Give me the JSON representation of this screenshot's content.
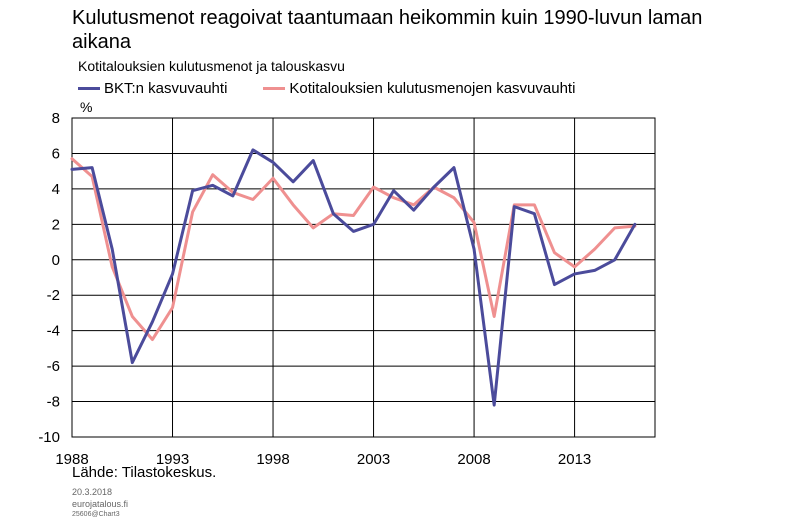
{
  "chart_data": {
    "type": "line",
    "title": "Kulutusmenot reagoivat taantumaan heikommin kuin 1990-luvun laman aikana",
    "subtitle": "Kotitalouksien kulutusmenot ja talouskasvu",
    "ylabel": "%",
    "ylim": [
      -10,
      8
    ],
    "yticks": [
      8,
      6,
      4,
      2,
      0,
      -2,
      -4,
      -6,
      -8,
      -10
    ],
    "xlim": [
      1988,
      2017
    ],
    "xticks": [
      1988,
      1993,
      1998,
      2003,
      2008,
      2013
    ],
    "grid": true,
    "legend_position": "top",
    "x": [
      1988,
      1989,
      1990,
      1991,
      1992,
      1993,
      1994,
      1995,
      1996,
      1997,
      1998,
      1999,
      2000,
      2001,
      2002,
      2003,
      2004,
      2005,
      2006,
      2007,
      2008,
      2009,
      2010,
      2011,
      2012,
      2013,
      2014,
      2015,
      2016
    ],
    "series": [
      {
        "name": "BKT:n kasvuvauhti",
        "color": "#4b4b9b",
        "values": [
          5.1,
          5.2,
          0.6,
          -5.8,
          -3.5,
          -0.8,
          3.9,
          4.2,
          3.6,
          6.2,
          5.5,
          4.4,
          5.6,
          2.6,
          1.6,
          2.0,
          3.9,
          2.8,
          4.1,
          5.2,
          0.6,
          -8.2,
          3.0,
          2.6,
          -1.4,
          -0.8,
          -0.6,
          0.0,
          2.0
        ]
      },
      {
        "name": "Kotitalouksien kulutusmenojen kasvuvauhti",
        "color": "#ef9090",
        "values": [
          5.7,
          4.7,
          -0.4,
          -3.2,
          -4.5,
          -2.7,
          2.7,
          4.8,
          3.8,
          3.4,
          4.6,
          3.1,
          1.8,
          2.6,
          2.5,
          4.1,
          3.5,
          3.1,
          4.1,
          3.5,
          2.1,
          -3.2,
          3.1,
          3.1,
          0.4,
          -0.4,
          0.6,
          1.8,
          1.9
        ]
      }
    ]
  },
  "source": "Lähde: Tilastokeskus.",
  "footer": {
    "date": "20.3.2018",
    "site": "eurojatalous.fi",
    "code": "25606@Chart3"
  }
}
